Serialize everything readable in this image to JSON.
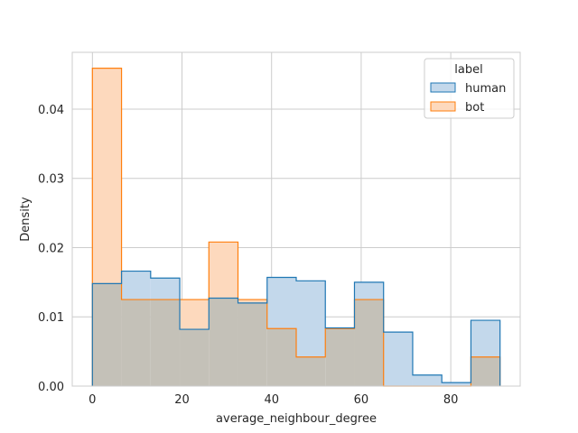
{
  "chart_data": {
    "type": "histogram",
    "title": "",
    "xlabel": "average_neighbour_degree",
    "ylabel": "Density",
    "xlim": [
      -4.5,
      95.5
    ],
    "ylim": [
      0,
      0.0482
    ],
    "xticks": [
      0,
      20,
      40,
      60,
      80
    ],
    "xtick_labels": [
      "0",
      "20",
      "40",
      "60",
      "80"
    ],
    "yticks": [
      0.0,
      0.01,
      0.02,
      0.03,
      0.04
    ],
    "ytick_labels": [
      "0.00",
      "0.01",
      "0.02",
      "0.03",
      "0.04"
    ],
    "grid": true,
    "bin_edges": [
      0,
      6.5,
      13,
      19.5,
      26,
      32.5,
      39,
      45.5,
      52,
      58.5,
      65,
      71.5,
      78,
      84.5,
      91
    ],
    "series": [
      {
        "name": "human",
        "fill": "#c3d8eb",
        "stroke": "#1f77b4",
        "values": [
          0.0148,
          0.0166,
          0.0156,
          0.0082,
          0.0127,
          0.012,
          0.0157,
          0.0152,
          0.0084,
          0.015,
          0.0078,
          0.0016,
          0.0005,
          0.0095
        ]
      },
      {
        "name": "bot",
        "fill": "#fdd9bd",
        "stroke": "#ff7f0e",
        "values": [
          0.0459,
          0.0125,
          0.0125,
          0.0125,
          0.0208,
          0.0125,
          0.0083,
          0.0042,
          0.0083,
          0.0125,
          0,
          0,
          0,
          0.0042
        ]
      }
    ],
    "overlap_color": "#c4c1b8",
    "legend": {
      "title": "label",
      "placement": "top-right",
      "entries": [
        "human",
        "bot"
      ]
    }
  }
}
